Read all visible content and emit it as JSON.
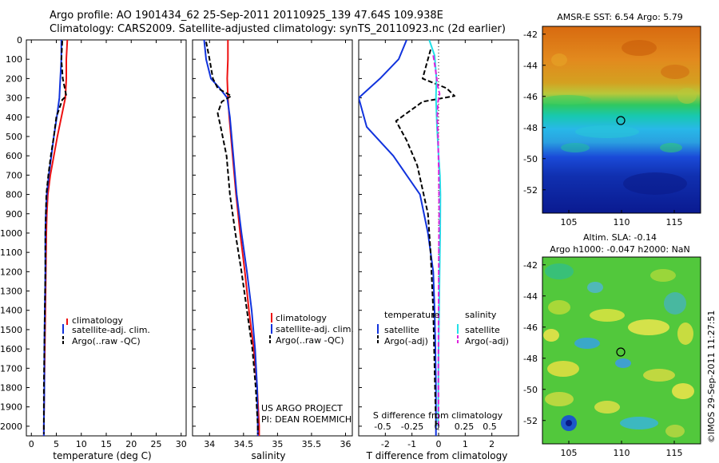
{
  "header": {
    "line1": "Argo profile: AO 1901434_62 25-Sep-2011 20110925_139 47.64S 109.938E",
    "line2": "Climatology: CARS2009. Satellite-adjusted climatology: synTS_20110923.nc (2d earlier)"
  },
  "credit": {
    "line1": "US ARGO PROJECT",
    "line2": "PI: DEAN ROEMMICH"
  },
  "stamp": "©IMOS 29-Sep-2011 11:27:51",
  "colors": {
    "climatology": "#ee1111",
    "satellite": "#1133dd",
    "argo": "#000000",
    "salinity_satellite": "#22e0e8",
    "salinity_argo": "#dd22dd"
  },
  "chart_data": [
    {
      "type": "line",
      "xlabel": "temperature (deg C)",
      "ylabel": "",
      "xlim": [
        -1,
        31
      ],
      "ylim": [
        2050,
        0
      ],
      "xticks": [
        0,
        5,
        10,
        15,
        20,
        25,
        30
      ],
      "yticks": [
        0,
        100,
        200,
        300,
        400,
        500,
        600,
        700,
        800,
        900,
        1000,
        1100,
        1200,
        1300,
        1400,
        1500,
        1600,
        1700,
        1800,
        1900,
        2000
      ],
      "legend": [
        "climatology",
        "satellite-adj. clim.",
        "Argo(..raw -QC)"
      ],
      "series": [
        {
          "name": "climatology",
          "color": "#ee1111",
          "style": "solid",
          "points": [
            [
              7.2,
              0
            ],
            [
              7.0,
              100
            ],
            [
              7.0,
              200
            ],
            [
              6.8,
              300
            ],
            [
              6.0,
              400
            ],
            [
              5.2,
              500
            ],
            [
              4.5,
              600
            ],
            [
              3.8,
              700
            ],
            [
              3.3,
              800
            ],
            [
              3.1,
              900
            ],
            [
              3.0,
              1000
            ],
            [
              2.9,
              1200
            ],
            [
              2.8,
              1400
            ],
            [
              2.7,
              1600
            ],
            [
              2.6,
              1800
            ],
            [
              2.5,
              2000
            ],
            [
              2.5,
              2050
            ]
          ]
        },
        {
          "name": "satellite-adj. clim.",
          "color": "#1133dd",
          "style": "solid",
          "points": [
            [
              6.0,
              0
            ],
            [
              6.0,
              100
            ],
            [
              5.8,
              200
            ],
            [
              5.6,
              300
            ],
            [
              5.1,
              400
            ],
            [
              4.5,
              500
            ],
            [
              4.0,
              600
            ],
            [
              3.5,
              700
            ],
            [
              3.1,
              800
            ],
            [
              2.9,
              900
            ],
            [
              2.8,
              1000
            ],
            [
              2.8,
              1200
            ],
            [
              2.7,
              1400
            ],
            [
              2.6,
              1600
            ],
            [
              2.6,
              1800
            ],
            [
              2.5,
              2000
            ],
            [
              2.5,
              2050
            ]
          ]
        },
        {
          "name": "Argo(..raw -QC)",
          "color": "#000000",
          "style": "dashed",
          "points": [
            [
              6.2,
              5
            ],
            [
              6.0,
              100
            ],
            [
              6.3,
              200
            ],
            [
              7.0,
              290
            ],
            [
              6.2,
              310
            ],
            [
              5.0,
              400
            ],
            [
              4.5,
              500
            ],
            [
              3.9,
              600
            ],
            [
              3.4,
              700
            ],
            [
              3.0,
              800
            ],
            [
              2.9,
              900
            ],
            [
              2.8,
              1000
            ],
            [
              2.8,
              1200
            ],
            [
              2.7,
              1400
            ],
            [
              2.6,
              1600
            ],
            [
              2.5,
              1800
            ],
            [
              2.5,
              2000
            ],
            [
              2.5,
              2040
            ]
          ]
        }
      ]
    },
    {
      "type": "line",
      "xlabel": "salinity",
      "ylabel": "",
      "xlim": [
        33.75,
        36.1
      ],
      "ylim": [
        2050,
        0
      ],
      "xticks": [
        34,
        34.5,
        35,
        35.5,
        36
      ],
      "legend": [
        "climatology",
        "satellite-adj. clim.",
        "Argo(..raw -QC)"
      ],
      "series": [
        {
          "name": "climatology",
          "color": "#ee1111",
          "style": "solid",
          "points": [
            [
              34.27,
              0
            ],
            [
              34.27,
              100
            ],
            [
              34.26,
              200
            ],
            [
              34.27,
              300
            ],
            [
              34.29,
              400
            ],
            [
              34.34,
              600
            ],
            [
              34.39,
              800
            ],
            [
              34.45,
              1000
            ],
            [
              34.52,
              1200
            ],
            [
              34.58,
              1400
            ],
            [
              34.65,
              1600
            ],
            [
              34.7,
              1800
            ],
            [
              34.73,
              2000
            ],
            [
              34.73,
              2050
            ]
          ]
        },
        {
          "name": "satellite-adj. clim.",
          "color": "#1133dd",
          "style": "solid",
          "points": [
            [
              33.92,
              0
            ],
            [
              33.95,
              100
            ],
            [
              34.02,
              200
            ],
            [
              34.15,
              250
            ],
            [
              34.26,
              300
            ],
            [
              34.3,
              400
            ],
            [
              34.35,
              600
            ],
            [
              34.4,
              800
            ],
            [
              34.47,
              1000
            ],
            [
              34.55,
              1200
            ],
            [
              34.62,
              1400
            ],
            [
              34.67,
              1600
            ],
            [
              34.7,
              1800
            ],
            [
              34.71,
              2000
            ],
            [
              34.71,
              2050
            ]
          ]
        },
        {
          "name": "Argo(..raw -QC)",
          "color": "#000000",
          "style": "dashed",
          "points": [
            [
              33.95,
              10
            ],
            [
              34.0,
              100
            ],
            [
              34.05,
              200
            ],
            [
              34.12,
              250
            ],
            [
              34.32,
              290
            ],
            [
              34.18,
              320
            ],
            [
              34.12,
              380
            ],
            [
              34.17,
              460
            ],
            [
              34.25,
              600
            ],
            [
              34.3,
              800
            ],
            [
              34.38,
              1000
            ],
            [
              34.47,
              1200
            ],
            [
              34.55,
              1400
            ],
            [
              34.63,
              1600
            ],
            [
              34.68,
              1800
            ],
            [
              34.71,
              2000
            ],
            [
              34.71,
              2040
            ]
          ]
        }
      ]
    },
    {
      "type": "line",
      "xlabel": "T difference from climatology",
      "ylabel": "",
      "xlim": [
        -3,
        3
      ],
      "ylim": [
        2050,
        0
      ],
      "xticks": [
        -2,
        -1,
        0,
        1,
        2
      ],
      "secondary_xlabel": "S difference from climatology",
      "secondary_xticks": [
        "-0.5",
        "-0.25",
        "0",
        "0.25",
        "0.5"
      ],
      "legend": {
        "temperature": [
          "satellite",
          "Argo(-adj)"
        ],
        "salinity": [
          "satellite",
          "Argo(-adj)"
        ]
      },
      "series": [
        {
          "name": "temperature satellite",
          "color": "#1133dd",
          "style": "solid",
          "points": [
            [
              -1.2,
              0
            ],
            [
              -1.5,
              100
            ],
            [
              -2.2,
              200
            ],
            [
              -3.0,
              300
            ],
            [
              -2.7,
              450
            ],
            [
              -1.7,
              600
            ],
            [
              -1.2,
              700
            ],
            [
              -0.7,
              800
            ],
            [
              -0.4,
              1000
            ],
            [
              -0.2,
              1200
            ],
            [
              -0.15,
              1400
            ],
            [
              -0.12,
              1600
            ],
            [
              -0.1,
              1800
            ],
            [
              -0.1,
              2000
            ],
            [
              -0.1,
              2050
            ]
          ]
        },
        {
          "name": "temperature Argo(-adj)",
          "color": "#000000",
          "style": "dashed",
          "points": [
            [
              -0.3,
              50
            ],
            [
              -0.5,
              150
            ],
            [
              -0.6,
              200
            ],
            [
              0.3,
              250
            ],
            [
              0.6,
              290
            ],
            [
              -0.6,
              320
            ],
            [
              -1.6,
              420
            ],
            [
              -1.2,
              520
            ],
            [
              -0.8,
              650
            ],
            [
              -0.4,
              900
            ],
            [
              -0.3,
              1100
            ],
            [
              -0.2,
              1400
            ],
            [
              -0.15,
              1700
            ],
            [
              -0.1,
              2000
            ]
          ]
        },
        {
          "name": "salinity satellite",
          "color": "#22e0e8",
          "style": "solid",
          "points": [
            [
              -0.35,
              0
            ],
            [
              -0.15,
              80
            ],
            [
              -0.08,
              200
            ],
            [
              -0.1,
              300
            ],
            [
              -0.06,
              450
            ],
            [
              0.0,
              600
            ],
            [
              0.05,
              700
            ],
            [
              0.07,
              800
            ],
            [
              0.06,
              1000
            ],
            [
              0.04,
              1200
            ],
            [
              0.02,
              1400
            ],
            [
              0.0,
              1600
            ],
            [
              -0.01,
              1800
            ],
            [
              -0.02,
              2000
            ]
          ]
        },
        {
          "name": "salinity Argo(-adj)",
          "color": "#dd22dd",
          "style": "dashed",
          "points": [
            [
              -0.2,
              80
            ],
            [
              -0.12,
              150
            ],
            [
              -0.03,
              240
            ],
            [
              0.04,
              280
            ],
            [
              -0.02,
              320
            ],
            [
              -0.05,
              400
            ],
            [
              -0.02,
              500
            ],
            [
              0.01,
              700
            ],
            [
              0.02,
              900
            ],
            [
              0.01,
              1100
            ],
            [
              0.0,
              1400
            ],
            [
              -0.01,
              1700
            ],
            [
              0.0,
              2000
            ]
          ]
        }
      ]
    },
    {
      "type": "heatmap",
      "title": "AMSR-E SST: 6.54 Argo: 5.79",
      "xticks": [
        105,
        110,
        115
      ],
      "yticks": [
        -42,
        -44,
        -46,
        -48,
        -50,
        -52
      ],
      "marker": [
        109.94,
        -47.64
      ]
    },
    {
      "type": "heatmap",
      "title": "Altim. SLA: -0.14",
      "subtitle": "Argo h1000: -0.047 h2000: NaN",
      "xticks": [
        105,
        110,
        115
      ],
      "yticks": [
        -42,
        -44,
        -46,
        -48,
        -50,
        -52
      ],
      "marker": [
        109.94,
        -47.64
      ]
    }
  ]
}
